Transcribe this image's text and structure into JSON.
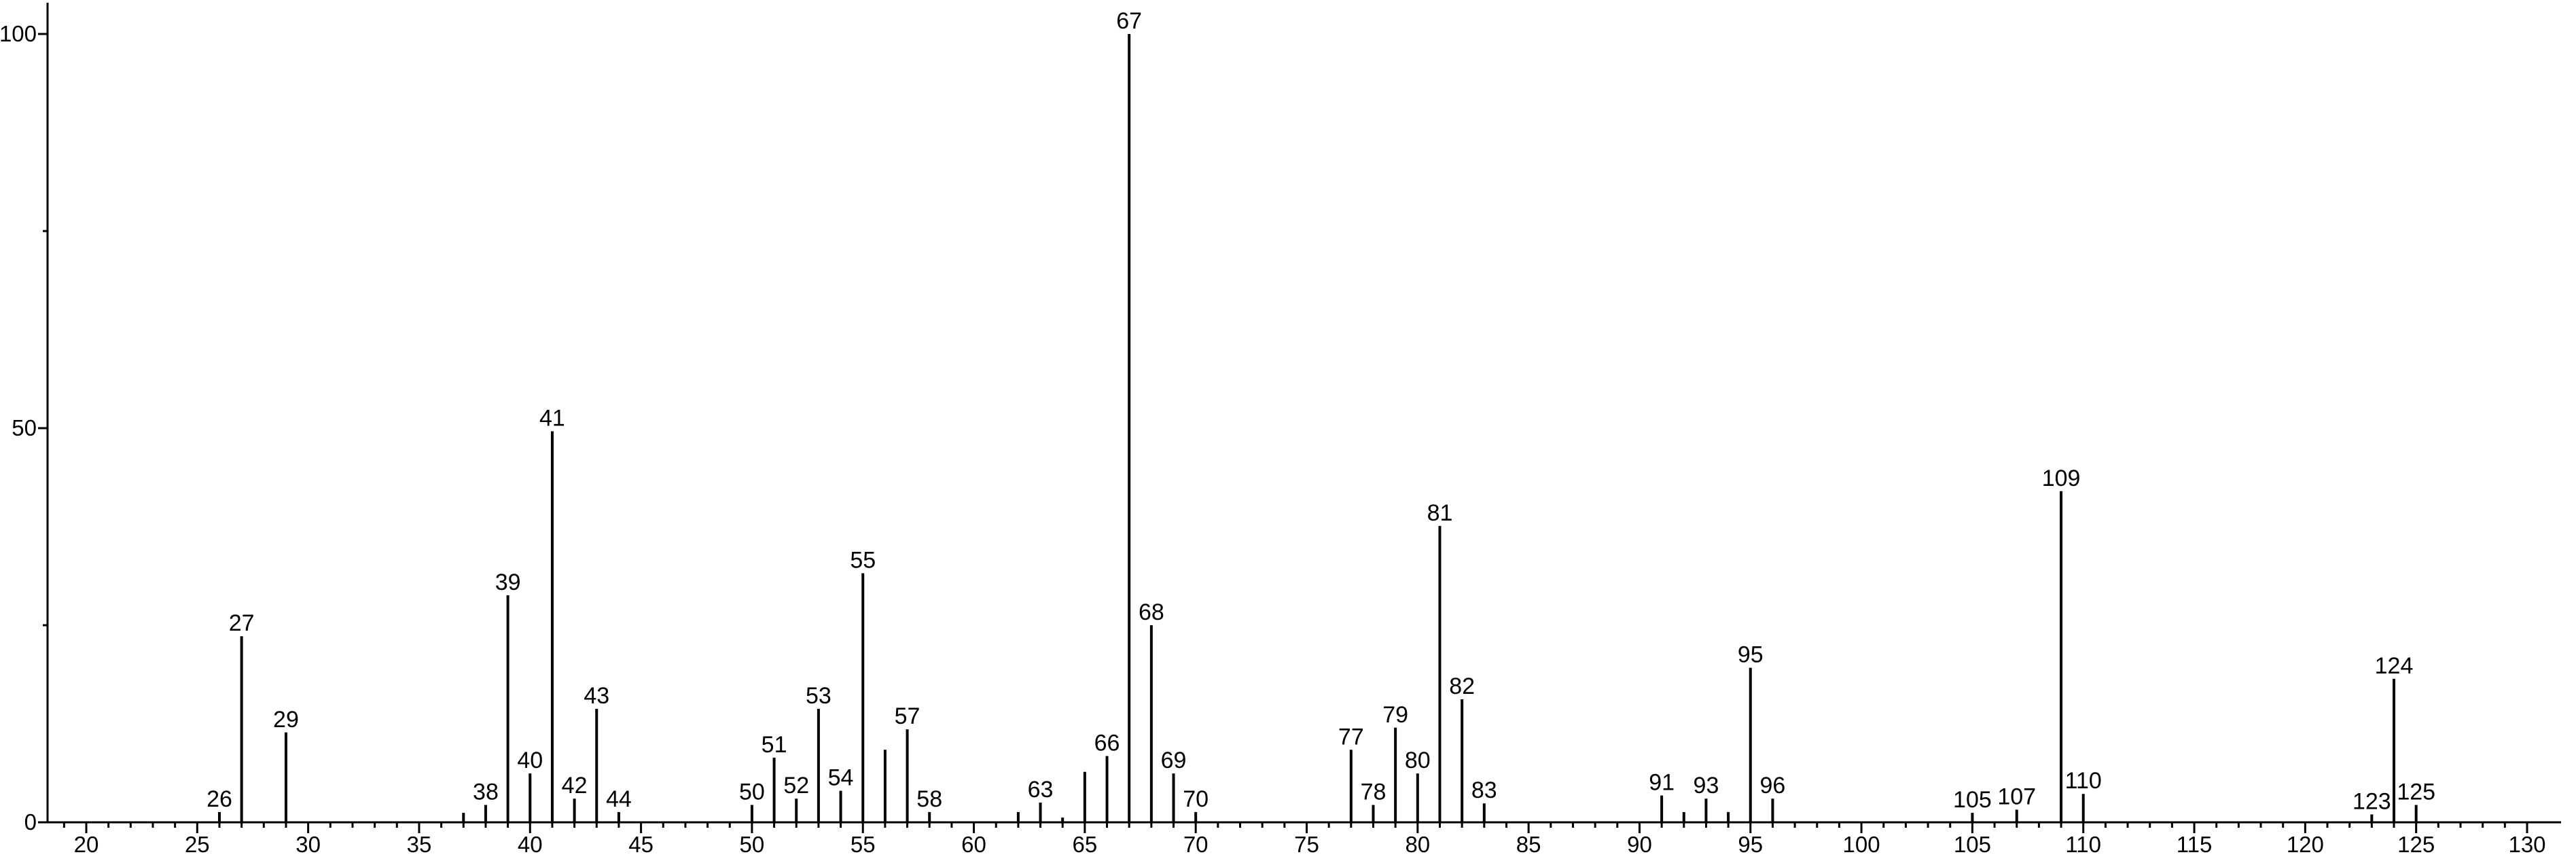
{
  "chart_data": {
    "type": "bar",
    "title": "",
    "xlabel": "",
    "ylabel": "",
    "xlim": [
      18,
      131
    ],
    "ylim": [
      0,
      100
    ],
    "grid": false,
    "x_ticks": [
      20,
      25,
      30,
      35,
      40,
      45,
      50,
      55,
      60,
      65,
      70,
      75,
      80,
      85,
      90,
      95,
      100,
      105,
      110,
      115,
      120,
      125,
      130
    ],
    "y_ticks": [
      0,
      50,
      100
    ],
    "colors": {
      "bar": "#000000",
      "axis": "#000000",
      "background": "#ffffff"
    },
    "peaks": [
      {
        "mz": 26,
        "intensity": 1.3,
        "label": "26"
      },
      {
        "mz": 27,
        "intensity": 23.6,
        "label": "27"
      },
      {
        "mz": 29,
        "intensity": 11.4,
        "label": "29"
      },
      {
        "mz": 37,
        "intensity": 1.2,
        "label": ""
      },
      {
        "mz": 38,
        "intensity": 2.2,
        "label": "38"
      },
      {
        "mz": 39,
        "intensity": 28.8,
        "label": "39"
      },
      {
        "mz": 40,
        "intensity": 6.2,
        "label": "40"
      },
      {
        "mz": 41,
        "intensity": 49.6,
        "label": "41"
      },
      {
        "mz": 42,
        "intensity": 3.0,
        "label": "42"
      },
      {
        "mz": 43,
        "intensity": 14.4,
        "label": "43"
      },
      {
        "mz": 44,
        "intensity": 1.3,
        "label": "44"
      },
      {
        "mz": 50,
        "intensity": 2.2,
        "label": "50"
      },
      {
        "mz": 51,
        "intensity": 8.2,
        "label": "51"
      },
      {
        "mz": 52,
        "intensity": 3.0,
        "label": "52"
      },
      {
        "mz": 53,
        "intensity": 14.4,
        "label": "53"
      },
      {
        "mz": 54,
        "intensity": 4.0,
        "label": "54"
      },
      {
        "mz": 55,
        "intensity": 31.6,
        "label": "55"
      },
      {
        "mz": 56,
        "intensity": 9.2,
        "label": ""
      },
      {
        "mz": 57,
        "intensity": 11.8,
        "label": "57"
      },
      {
        "mz": 58,
        "intensity": 1.3,
        "label": "58"
      },
      {
        "mz": 62,
        "intensity": 1.3,
        "label": ""
      },
      {
        "mz": 63,
        "intensity": 2.5,
        "label": "63"
      },
      {
        "mz": 64,
        "intensity": 0.6,
        "label": ""
      },
      {
        "mz": 65,
        "intensity": 6.4,
        "label": ""
      },
      {
        "mz": 66,
        "intensity": 8.4,
        "label": "66"
      },
      {
        "mz": 67,
        "intensity": 100,
        "label": "67"
      },
      {
        "mz": 68,
        "intensity": 25.0,
        "label": "68"
      },
      {
        "mz": 69,
        "intensity": 6.2,
        "label": "69"
      },
      {
        "mz": 70,
        "intensity": 1.3,
        "label": "70"
      },
      {
        "mz": 77,
        "intensity": 9.2,
        "label": "77"
      },
      {
        "mz": 78,
        "intensity": 2.2,
        "label": "78"
      },
      {
        "mz": 79,
        "intensity": 12.0,
        "label": "79"
      },
      {
        "mz": 80,
        "intensity": 6.2,
        "label": "80"
      },
      {
        "mz": 81,
        "intensity": 37.6,
        "label": "81"
      },
      {
        "mz": 82,
        "intensity": 15.6,
        "label": "82"
      },
      {
        "mz": 83,
        "intensity": 2.4,
        "label": "83"
      },
      {
        "mz": 91,
        "intensity": 3.4,
        "label": "91"
      },
      {
        "mz": 92,
        "intensity": 1.3,
        "label": ""
      },
      {
        "mz": 93,
        "intensity": 3.0,
        "label": "93"
      },
      {
        "mz": 94,
        "intensity": 1.3,
        "label": ""
      },
      {
        "mz": 95,
        "intensity": 19.6,
        "label": "95"
      },
      {
        "mz": 96,
        "intensity": 3.0,
        "label": "96"
      },
      {
        "mz": 105,
        "intensity": 1.2,
        "label": "105"
      },
      {
        "mz": 107,
        "intensity": 1.6,
        "label": "107"
      },
      {
        "mz": 109,
        "intensity": 42.0,
        "label": "109"
      },
      {
        "mz": 110,
        "intensity": 3.6,
        "label": "110"
      },
      {
        "mz": 123,
        "intensity": 1.0,
        "label": "123"
      },
      {
        "mz": 124,
        "intensity": 18.2,
        "label": "124"
      },
      {
        "mz": 125,
        "intensity": 2.2,
        "label": "125"
      }
    ]
  }
}
